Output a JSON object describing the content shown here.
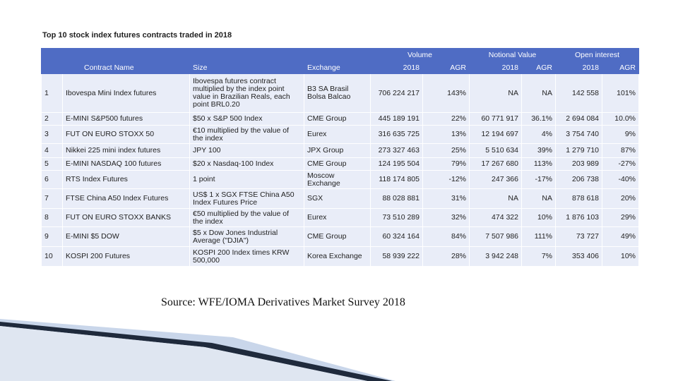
{
  "header": {
    "title": "Top 10 stock index futures contracts traded in 2018"
  },
  "table": {
    "group_headers": [
      "Volume",
      "Notional Value",
      "Open interest"
    ],
    "columns": [
      "Contract Name",
      "Size",
      "Exchange",
      "2018",
      "AGR",
      "2018",
      "AGR",
      "2018",
      "AGR"
    ],
    "rows": [
      [
        "1",
        "Ibovespa Mini Index futures",
        "Ibovespa futures contract multiplied by the index point value in Brazilian Reals, each point BRL0.20",
        "B3 SA Brasil Bolsa Balcao",
        "706 224 217",
        "143%",
        "NA",
        "NA",
        "142 558",
        "101%"
      ],
      [
        "2",
        "E-MINI S&P500 futures",
        "$50 x S&P 500 Index",
        "CME Group",
        "445 189 191",
        "22%",
        "60 771 917",
        "36.1%",
        "2 694 084",
        "10.0%"
      ],
      [
        "3",
        "FUT ON EURO STOXX 50",
        "€10 multiplied by the value of the index",
        "Eurex",
        "316 635 725",
        "13%",
        "12 194 697",
        "4%",
        "3 754 740",
        "9%"
      ],
      [
        "4",
        "Nikkei 225 mini index futures",
        "JPY 100",
        "JPX Group",
        "273 327 463",
        "25%",
        "5 510 634",
        "39%",
        "1 279 710",
        "87%"
      ],
      [
        "5",
        "E-MINI NASDAQ 100 futures",
        "$20 x Nasdaq-100 Index",
        "CME Group",
        "124 195 504",
        "79%",
        "17 267 680",
        "113%",
        "203 989",
        "-27%"
      ],
      [
        "6",
        "RTS Index Futures",
        "1 point",
        "Moscow Exchange",
        "118 174 805",
        "-12%",
        "247 366",
        "-17%",
        "206 738",
        "-40%"
      ],
      [
        "7",
        "FTSE China A50 Index Futures",
        "US$ 1 x SGX FTSE China A50 Index Futures Price",
        "SGX",
        "88 028 881",
        "31%",
        "NA",
        "NA",
        "878 618",
        "20%"
      ],
      [
        "8",
        "FUT ON EURO STOXX BANKS",
        "€50 multiplied by the value of the index",
        "Eurex",
        "73 510 289",
        "32%",
        "474 322",
        "10%",
        "1 876 103",
        "29%"
      ],
      [
        "9",
        "E-MINI $5 DOW",
        "$5 x Dow Jones Industrial Average (\"DJIA\")",
        "CME Group",
        "60 324 164",
        "84%",
        "7 507 986",
        "111%",
        "73 727",
        "49%"
      ],
      [
        "10",
        "KOSPI 200 Futures",
        "KOSPI 200 Index times KRW 500,000",
        "Korea Exchange",
        "58 939 222",
        "28%",
        "3 942 248",
        "7%",
        "353 406",
        "10%"
      ]
    ]
  },
  "footer": {
    "source": "Source: WFE/IOMA Derivatives Market Survey 2018"
  }
}
